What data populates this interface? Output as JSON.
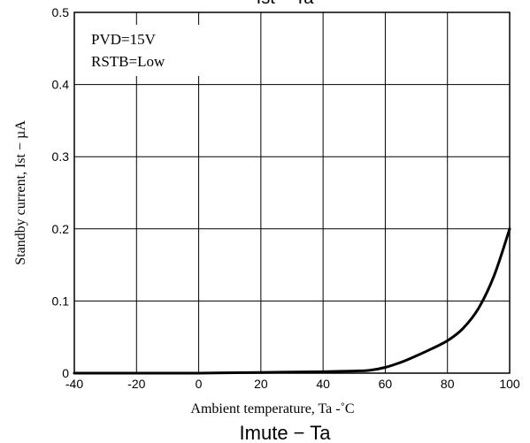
{
  "top_cut_title": "Ist − Ta",
  "bottom_cut_title": "Imute − Ta",
  "chart_data": {
    "type": "line",
    "xlabel": "Ambient temperature, Ta -˚C",
    "ylabel": "Standby current, Ist − µA",
    "xlim": [
      -40,
      100
    ],
    "ylim": [
      0,
      0.5
    ],
    "x_ticks": [
      "-40",
      "-20",
      "0",
      "20",
      "40",
      "60",
      "80",
      "100"
    ],
    "y_ticks": [
      "0",
      "0.1",
      "0.2",
      "0.3",
      "0.4",
      "0.5"
    ],
    "grid": true,
    "annotations": [
      "PVD=15V",
      "RSTB=Low"
    ],
    "series": [
      {
        "x": [
          -40,
          -20,
          0,
          20,
          40,
          50,
          55,
          60,
          65,
          70,
          75,
          80,
          85,
          90,
          95,
          100
        ],
        "y": [
          0,
          0,
          0,
          0.001,
          0.002,
          0.003,
          0.004,
          0.008,
          0.015,
          0.024,
          0.034,
          0.045,
          0.062,
          0.09,
          0.135,
          0.2
        ]
      }
    ]
  }
}
